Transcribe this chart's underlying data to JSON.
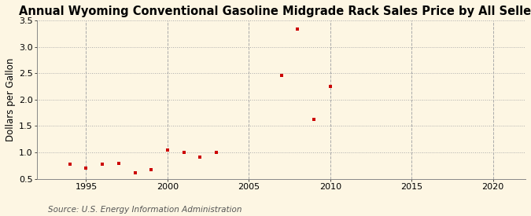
{
  "title": "Annual Wyoming Conventional Gasoline Midgrade Rack Sales Price by All Sellers",
  "ylabel": "Dollars per Gallon",
  "source": "Source: U.S. Energy Information Administration",
  "background_color": "#fdf6e3",
  "marker_color": "#cc0000",
  "years": [
    1994,
    1995,
    1996,
    1997,
    1998,
    1999,
    2000,
    2001,
    2002,
    2003,
    2007,
    2008,
    2009,
    2010
  ],
  "values": [
    0.78,
    0.7,
    0.78,
    0.8,
    0.61,
    0.67,
    1.05,
    1.0,
    0.91,
    1.0,
    2.46,
    3.33,
    1.62,
    2.25
  ],
  "xlim": [
    1992,
    2022
  ],
  "ylim": [
    0.5,
    3.5
  ],
  "xticks": [
    1995,
    2000,
    2005,
    2010,
    2015,
    2020
  ],
  "yticks": [
    0.5,
    1.0,
    1.5,
    2.0,
    2.5,
    3.0,
    3.5
  ],
  "grid_color": "#aaaaaa",
  "title_fontsize": 10.5,
  "ylabel_fontsize": 8.5,
  "tick_fontsize": 8,
  "source_fontsize": 7.5
}
